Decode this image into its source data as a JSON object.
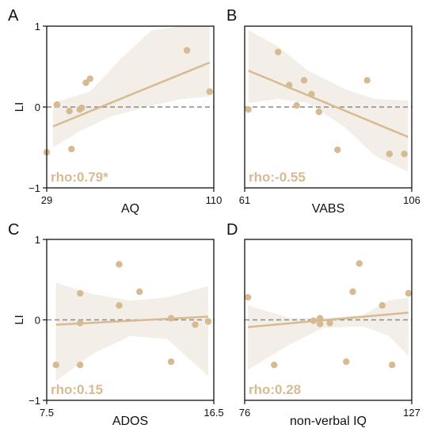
{
  "colors": {
    "accent": "#d6bb92",
    "band": "#f3efe8",
    "refline": "#8a8a8a"
  },
  "chart_data": [
    {
      "type": "scatter",
      "panel": "A",
      "xlabel": "AQ",
      "ylabel": "LI",
      "xlim": [
        29,
        110
      ],
      "ylim": [
        -1,
        1
      ],
      "xticks": [
        "29",
        "110"
      ],
      "yticks": [
        "1",
        "0",
        "−1"
      ],
      "annotation": "rho:0.79*",
      "points": [
        [
          29,
          -0.56
        ],
        [
          34,
          0.03
        ],
        [
          40,
          -0.05
        ],
        [
          41,
          -0.52
        ],
        [
          45,
          -0.03
        ],
        [
          46,
          -0.01
        ],
        [
          48,
          0.3
        ],
        [
          50,
          0.35
        ],
        [
          97,
          0.7
        ],
        [
          108,
          0.19
        ]
      ],
      "fit": [
        [
          32,
          -0.24
        ],
        [
          108,
          0.55
        ]
      ],
      "band_upper": [
        [
          32,
          0.05
        ],
        [
          50,
          0.19
        ],
        [
          65,
          0.6
        ],
        [
          80,
          0.95
        ],
        [
          95,
          1.0
        ],
        [
          108,
          1.0
        ]
      ],
      "band_lower": [
        [
          32,
          -0.5
        ],
        [
          45,
          -0.3
        ],
        [
          60,
          -0.12
        ],
        [
          80,
          0.02
        ],
        [
          95,
          0.1
        ],
        [
          108,
          0.13
        ]
      ]
    },
    {
      "type": "scatter",
      "panel": "B",
      "xlabel": "VABS",
      "ylabel": "",
      "xlim": [
        61,
        106
      ],
      "ylim": [
        -1,
        1
      ],
      "xticks": [
        "61",
        "106"
      ],
      "yticks": [],
      "annotation": "rho:-0.55",
      "points": [
        [
          62,
          -0.03
        ],
        [
          70,
          0.68
        ],
        [
          73,
          0.27
        ],
        [
          75,
          0.02
        ],
        [
          77,
          0.33
        ],
        [
          79,
          0.16
        ],
        [
          81,
          -0.06
        ],
        [
          86,
          -0.53
        ],
        [
          94,
          0.33
        ],
        [
          100,
          -0.58
        ],
        [
          104,
          -0.58
        ]
      ],
      "fit": [
        [
          62,
          0.45
        ],
        [
          105,
          -0.37
        ]
      ],
      "band_upper": [
        [
          62,
          0.95
        ],
        [
          70,
          0.75
        ],
        [
          78,
          0.45
        ],
        [
          88,
          0.22
        ],
        [
          96,
          0.1
        ],
        [
          105,
          0.08
        ]
      ],
      "band_lower": [
        [
          62,
          0.05
        ],
        [
          70,
          0.1
        ],
        [
          78,
          0.05
        ],
        [
          88,
          -0.25
        ],
        [
          96,
          -0.6
        ],
        [
          105,
          -0.8
        ]
      ]
    },
    {
      "type": "scatter",
      "panel": "C",
      "xlabel": "ADOS",
      "ylabel": "LI",
      "xlim": [
        7.5,
        16.5
      ],
      "ylim": [
        -1,
        1
      ],
      "xticks": [
        "7.5",
        "16.5"
      ],
      "yticks": [
        "1",
        "0",
        "−1"
      ],
      "annotation": "rho:0.15",
      "points": [
        [
          8,
          -0.56
        ],
        [
          9.3,
          0.33
        ],
        [
          9.3,
          -0.04
        ],
        [
          9.3,
          -0.56
        ],
        [
          11.4,
          0.69
        ],
        [
          11.4,
          0.18
        ],
        [
          12.5,
          0.35
        ],
        [
          14.2,
          0.02
        ],
        [
          14.2,
          -0.52
        ],
        [
          15.5,
          -0.06
        ],
        [
          16.2,
          -0.02
        ]
      ],
      "fit": [
        [
          8,
          -0.06
        ],
        [
          16.2,
          0.04
        ]
      ],
      "band_upper": [
        [
          8,
          0.46
        ],
        [
          10,
          0.32
        ],
        [
          12,
          0.24
        ],
        [
          14,
          0.28
        ],
        [
          16.2,
          0.42
        ]
      ],
      "band_lower": [
        [
          8,
          -0.76
        ],
        [
          10,
          -0.42
        ],
        [
          12,
          -0.2
        ],
        [
          14,
          -0.24
        ],
        [
          16.2,
          -0.7
        ]
      ]
    },
    {
      "type": "scatter",
      "panel": "D",
      "xlabel": "non-verbal IQ",
      "ylabel": "",
      "xlim": [
        76,
        127
      ],
      "ylim": [
        -1,
        1
      ],
      "xticks": [
        "76",
        "127"
      ],
      "yticks": [],
      "annotation": "rho:0.28",
      "points": [
        [
          77,
          0.28
        ],
        [
          85,
          -0.56
        ],
        [
          97,
          -0.01
        ],
        [
          99,
          0.02
        ],
        [
          99,
          -0.05
        ],
        [
          102,
          -0.04
        ],
        [
          107,
          -0.52
        ],
        [
          109,
          0.35
        ],
        [
          111,
          0.7
        ],
        [
          118,
          0.18
        ],
        [
          121,
          -0.56
        ],
        [
          126,
          0.33
        ]
      ],
      "fit": [
        [
          77,
          -0.09
        ],
        [
          126,
          0.09
        ]
      ],
      "band_upper": [
        [
          77,
          0.18
        ],
        [
          90,
          0.02
        ],
        [
          100,
          0.02
        ],
        [
          112,
          0.06
        ],
        [
          120,
          0.24
        ],
        [
          126,
          0.28
        ]
      ],
      "band_lower": [
        [
          77,
          -0.62
        ],
        [
          90,
          -0.3
        ],
        [
          100,
          -0.1
        ],
        [
          112,
          -0.08
        ],
        [
          120,
          -0.2
        ],
        [
          126,
          -0.45
        ]
      ]
    }
  ]
}
